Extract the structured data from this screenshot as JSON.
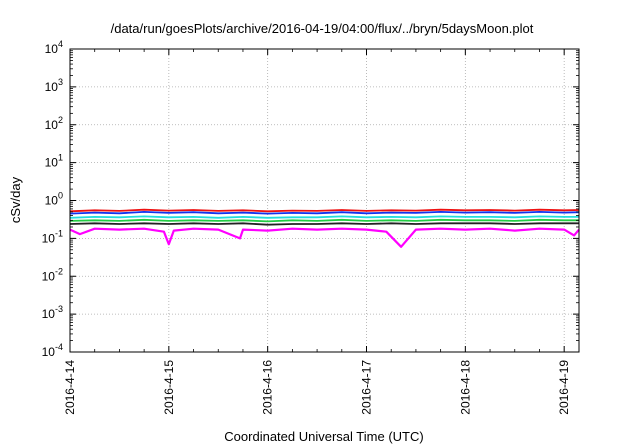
{
  "chart_data": {
    "type": "line",
    "title": "/data/run/goesPlots/archive/2016-04-19/04:00/flux/../bryn/5daysMoon.plot",
    "xlabel": "Coordinated Universal Time (UTC)",
    "ylabel": "cSv/day",
    "y_scale": "log",
    "ylim_exp": [
      -4,
      4
    ],
    "y_tick_exponents": [
      -4,
      -3,
      -2,
      -1,
      0,
      1,
      2,
      3,
      4
    ],
    "y_tick_base": "10",
    "xlim": [
      0.0,
      5.15
    ],
    "x_tick_labels": [
      "2016-4-14",
      "2016-4-15",
      "2016-4-16",
      "2016-4-17",
      "2016-4-18",
      "2016-4-19"
    ],
    "grid": true,
    "legend": false,
    "series_colors": [
      "#ee1111",
      "#1133ee",
      "#22dddd",
      "#22cc44",
      "#222222",
      "#ff00ff"
    ],
    "series": [
      {
        "color": "#ee1111",
        "x": [
          0.0,
          0.25,
          0.5,
          0.75,
          1.0,
          1.25,
          1.5,
          1.75,
          2.0,
          2.25,
          2.5,
          2.75,
          3.0,
          3.25,
          3.5,
          3.75,
          4.0,
          4.25,
          4.5,
          4.75,
          5.0,
          5.15
        ],
        "y": [
          0.52,
          0.55,
          0.53,
          0.57,
          0.54,
          0.56,
          0.53,
          0.55,
          0.52,
          0.54,
          0.53,
          0.56,
          0.53,
          0.55,
          0.54,
          0.57,
          0.55,
          0.56,
          0.54,
          0.57,
          0.55,
          0.56
        ]
      },
      {
        "color": "#1133ee",
        "x": [
          0.0,
          0.25,
          0.5,
          0.75,
          1.0,
          1.25,
          1.5,
          1.75,
          2.0,
          2.25,
          2.5,
          2.75,
          3.0,
          3.25,
          3.5,
          3.75,
          4.0,
          4.25,
          4.5,
          4.75,
          5.0,
          5.15
        ],
        "y": [
          0.45,
          0.48,
          0.46,
          0.5,
          0.47,
          0.49,
          0.46,
          0.48,
          0.45,
          0.47,
          0.46,
          0.49,
          0.46,
          0.48,
          0.47,
          0.5,
          0.48,
          0.49,
          0.47,
          0.5,
          0.48,
          0.49
        ]
      },
      {
        "color": "#22dddd",
        "x": [
          0.0,
          0.25,
          0.5,
          0.75,
          1.0,
          1.25,
          1.5,
          1.75,
          2.0,
          2.25,
          2.5,
          2.75,
          3.0,
          3.25,
          3.5,
          3.75,
          4.0,
          4.25,
          4.5,
          4.75,
          5.0,
          5.15
        ],
        "y": [
          0.35,
          0.37,
          0.36,
          0.38,
          0.36,
          0.37,
          0.35,
          0.37,
          0.35,
          0.36,
          0.36,
          0.38,
          0.36,
          0.37,
          0.36,
          0.38,
          0.37,
          0.37,
          0.36,
          0.38,
          0.37,
          0.37
        ]
      },
      {
        "color": "#22cc44",
        "x": [
          0.0,
          0.25,
          0.5,
          0.75,
          1.0,
          1.25,
          1.5,
          1.75,
          2.0,
          2.25,
          2.5,
          2.75,
          3.0,
          3.25,
          3.5,
          3.75,
          4.0,
          4.25,
          4.5,
          4.75,
          5.0,
          5.15
        ],
        "y": [
          0.29,
          0.3,
          0.29,
          0.31,
          0.29,
          0.3,
          0.29,
          0.3,
          0.28,
          0.3,
          0.29,
          0.31,
          0.29,
          0.3,
          0.29,
          0.31,
          0.3,
          0.3,
          0.29,
          0.31,
          0.3,
          0.3
        ]
      },
      {
        "color": "#222222",
        "x": [
          0.0,
          0.25,
          0.5,
          0.75,
          1.0,
          1.25,
          1.5,
          1.75,
          2.0,
          2.25,
          2.5,
          2.75,
          3.0,
          3.25,
          3.5,
          3.75,
          4.0,
          4.25,
          4.5,
          4.75,
          5.0,
          5.15
        ],
        "y": [
          0.24,
          0.25,
          0.24,
          0.25,
          0.24,
          0.25,
          0.24,
          0.25,
          0.23,
          0.24,
          0.24,
          0.25,
          0.24,
          0.25,
          0.24,
          0.25,
          0.25,
          0.25,
          0.24,
          0.25,
          0.25,
          0.25
        ]
      },
      {
        "color": "#ff00ff",
        "x": [
          0.0,
          0.1,
          0.25,
          0.5,
          0.75,
          0.95,
          1.0,
          1.05,
          1.25,
          1.5,
          1.72,
          1.75,
          2.0,
          2.25,
          2.5,
          2.75,
          3.0,
          3.2,
          3.35,
          3.5,
          3.75,
          4.0,
          4.25,
          4.5,
          4.75,
          5.0,
          5.1,
          5.15
        ],
        "y": [
          0.17,
          0.13,
          0.18,
          0.17,
          0.18,
          0.15,
          0.07,
          0.16,
          0.18,
          0.17,
          0.1,
          0.17,
          0.16,
          0.18,
          0.17,
          0.18,
          0.17,
          0.15,
          0.06,
          0.17,
          0.18,
          0.17,
          0.18,
          0.16,
          0.18,
          0.17,
          0.12,
          0.17
        ]
      }
    ]
  }
}
